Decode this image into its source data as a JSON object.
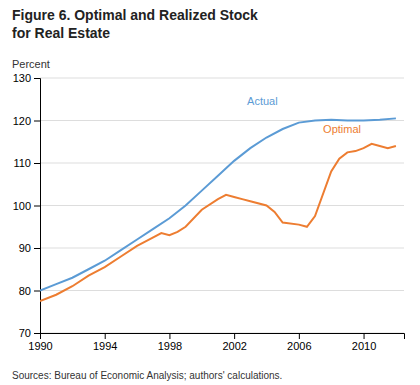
{
  "chart_data": {
    "type": "line",
    "title": "Figure 6. Optimal and Realized Stock",
    "subtitle": "for Real Estate",
    "y_label": "Percent",
    "source": "Sources: Bureau of Economic Analysis; authors' calculations.",
    "xlim": [
      1990,
      2012.5
    ],
    "ylim": [
      70,
      130
    ],
    "xticks": [
      1990,
      1994,
      1998,
      2002,
      2006,
      2010
    ],
    "yticks": [
      70,
      80,
      90,
      100,
      110,
      120,
      130
    ],
    "grid": true,
    "series": [
      {
        "color": "#5b9bd5",
        "x": [
          1990,
          1991,
          1992,
          1993,
          1994,
          1995,
          1996,
          1997,
          1998,
          1999,
          2000,
          2001,
          2002,
          2003,
          2004,
          2005,
          2006,
          2007,
          2008,
          2009,
          2010,
          2011,
          2012
        ],
        "values": [
          80.0,
          81.5,
          83.0,
          85.0,
          87.0,
          89.5,
          92.0,
          94.5,
          97.0,
          100.0,
          103.5,
          107.0,
          110.5,
          113.5,
          116.0,
          118.0,
          119.5,
          120.0,
          120.2,
          120.0,
          120.0,
          120.2,
          120.5
        ]
      },
      {
        "color": "#ed7d31",
        "x": [
          1990,
          1991,
          1992,
          1993,
          1994,
          1995,
          1996,
          1997,
          1997.5,
          1998,
          1998.5,
          1999,
          2000,
          2001,
          2001.5,
          2002,
          2002.5,
          2003,
          2004,
          2004.5,
          2005,
          2006,
          2006.5,
          2007,
          2008,
          2008.5,
          2009,
          2009.5,
          2010,
          2010.5,
          2011,
          2011.5,
          2012
        ],
        "values": [
          77.5,
          79.0,
          81.0,
          83.5,
          85.5,
          88.0,
          90.5,
          92.5,
          93.5,
          93.0,
          93.8,
          95.0,
          99.0,
          101.5,
          102.5,
          102.0,
          101.5,
          101.0,
          100.0,
          98.5,
          96.0,
          95.5,
          95.0,
          97.5,
          108.0,
          111.0,
          112.5,
          112.8,
          113.5,
          114.5,
          114.0,
          113.5,
          114.0
        ]
      }
    ],
    "annotations": [
      {
        "text": "Actual",
        "x": 2002.8,
        "y": 124.5,
        "color": "#5b9bd5"
      },
      {
        "text": "Optimal",
        "x": 2007.5,
        "y": 118.0,
        "color": "#ed7d31"
      }
    ]
  }
}
